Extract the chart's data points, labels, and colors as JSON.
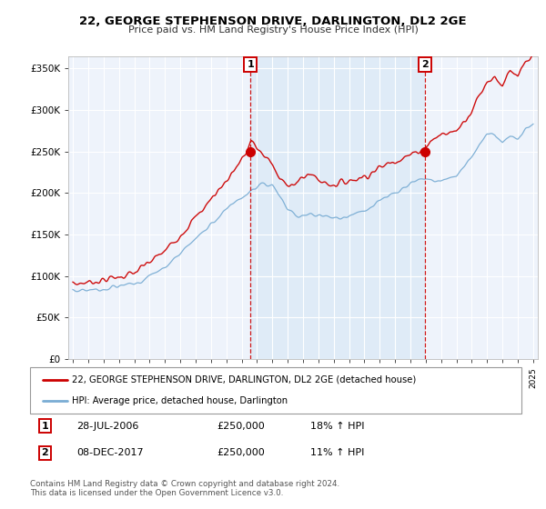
{
  "title": "22, GEORGE STEPHENSON DRIVE, DARLINGTON, DL2 2GE",
  "subtitle": "Price paid vs. HM Land Registry's House Price Index (HPI)",
  "yticks": [
    0,
    50000,
    100000,
    150000,
    200000,
    250000,
    300000,
    350000
  ],
  "ylim": [
    0,
    365000
  ],
  "legend_line1": "22, GEORGE STEPHENSON DRIVE, DARLINGTON, DL2 2GE (detached house)",
  "legend_line2": "HPI: Average price, detached house, Darlington",
  "sale1_label": "1",
  "sale1_date": "28-JUL-2006",
  "sale1_price": "£250,000",
  "sale1_hpi": "18% ↑ HPI",
  "sale2_label": "2",
  "sale2_date": "08-DEC-2017",
  "sale2_price": "£250,000",
  "sale2_hpi": "11% ↑ HPI",
  "footnote": "Contains HM Land Registry data © Crown copyright and database right 2024.\nThis data is licensed under the Open Government Licence v3.0.",
  "red_color": "#cc0000",
  "blue_color": "#7aadd4",
  "fill_color": "#ddeaf7",
  "background_chart": "#eef3fb",
  "background_fig": "#ffffff",
  "grid_color": "#ffffff",
  "sale1_x": 2006.57,
  "sale1_y": 250000,
  "sale2_x": 2017.93,
  "sale2_y": 250000,
  "xlim_left": 1994.7,
  "xlim_right": 2025.3
}
